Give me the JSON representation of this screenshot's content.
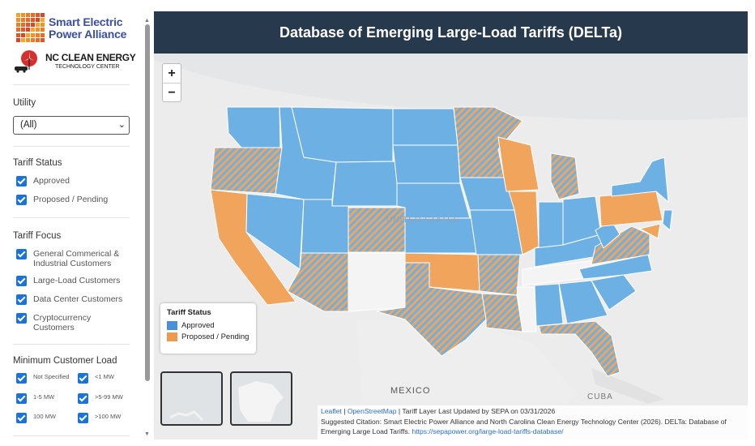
{
  "sidebar": {
    "logo1": {
      "line1": "Smart Electric",
      "line2": "Power Alliance"
    },
    "logo2": {
      "line1": "NC CLEAN ENERGY",
      "line2": "TECHNOLOGY CENTER"
    },
    "utility": {
      "label": "Utility",
      "selected": "(All)"
    },
    "tariff_status": {
      "label": "Tariff Status",
      "options": [
        "Approved",
        "Proposed / Pending"
      ]
    },
    "tariff_focus": {
      "label": "Tariff Focus",
      "options": [
        "General Commerical & Industrial Customers",
        "Large-Load Customers",
        "Data Center Customers",
        "Cryptocurrency Customers"
      ]
    },
    "min_load": {
      "label": "Minimum Customer Load",
      "options": [
        "Not Specified",
        "<1 MW",
        "1-5 MW",
        ">5-99 MW",
        "100 MW",
        ">100 MW"
      ]
    }
  },
  "map": {
    "title": "Database of Emerging Large-Load Tariffs (DELTa)",
    "zoom_in": "+",
    "zoom_out": "−",
    "legend": {
      "title": "Tariff Status",
      "approved": "Approved",
      "proposed": "Proposed / Pending"
    },
    "labels": {
      "us": "UNITED STATES",
      "mexico": "MEXICO",
      "cuba": "CUBA"
    },
    "attribution": {
      "leaflet": "Leaflet",
      "sep": " | ",
      "osm": "OpenStreetMap",
      "updated": " | Tariff Layer Last Updated by SEPA on 03/31/2026",
      "citation": "Suggested Citation: Smart Electric Power Alliance and North Carolina Clean Energy Technology Center (2026). DELTa: Database of Emerging Large Load Tariffs. ",
      "url": "https://sepapower.org/large-load-tariffs-database/"
    }
  },
  "colors": {
    "approved": "#6cb0e4",
    "proposed": "#f0a45c",
    "header": "#27394d",
    "checkbox": "#1a73d9"
  }
}
